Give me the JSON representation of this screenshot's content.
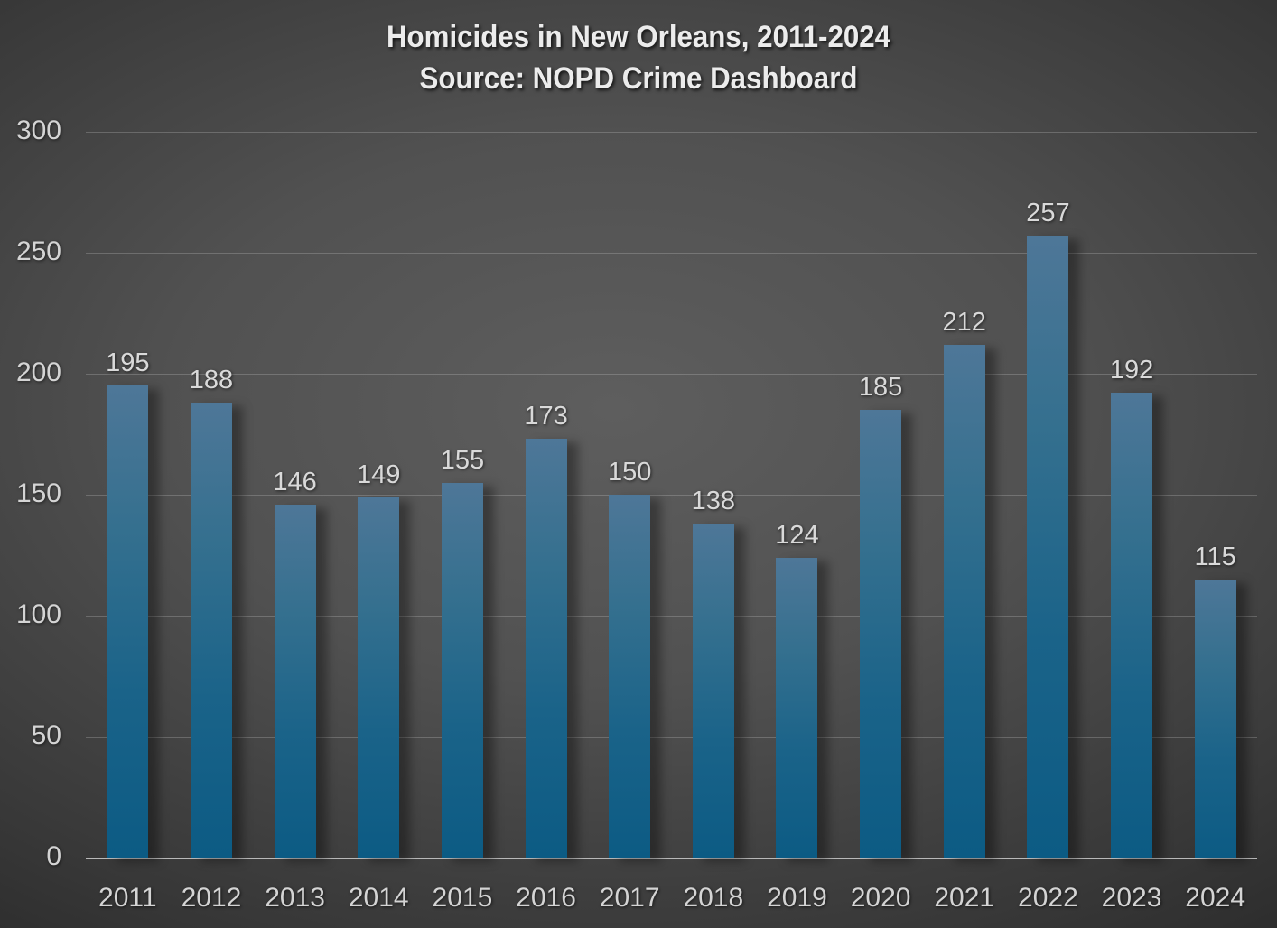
{
  "title": {
    "line1": "Homicides in New Orleans, 2011-2024",
    "line2": "Source: NOPD Crime Dashboard"
  },
  "chart_data": {
    "type": "bar",
    "title": "Homicides in New Orleans, 2011-2024",
    "subtitle": "Source: NOPD Crime Dashboard",
    "categories": [
      "2011",
      "2012",
      "2013",
      "2014",
      "2015",
      "2016",
      "2017",
      "2018",
      "2019",
      "2020",
      "2021",
      "2022",
      "2023",
      "2024"
    ],
    "values": [
      195,
      188,
      146,
      149,
      155,
      173,
      150,
      138,
      124,
      185,
      212,
      257,
      192,
      115
    ],
    "xlabel": "",
    "ylabel": "",
    "ylim": [
      0,
      300
    ],
    "yticks": [
      0,
      50,
      100,
      150,
      200,
      250,
      300
    ],
    "grid": true,
    "legend": false,
    "data_labels": true,
    "colors": {
      "bar_top": "#4e7798",
      "bar_bottom": "#0c5b84",
      "background_center": "#5e5e5e",
      "background_edge": "#242424",
      "gridline": "#8c8c8c",
      "axis_line": "#b9b9b9",
      "label_text": "#d4d4d4",
      "title_text": "#ececec"
    }
  }
}
